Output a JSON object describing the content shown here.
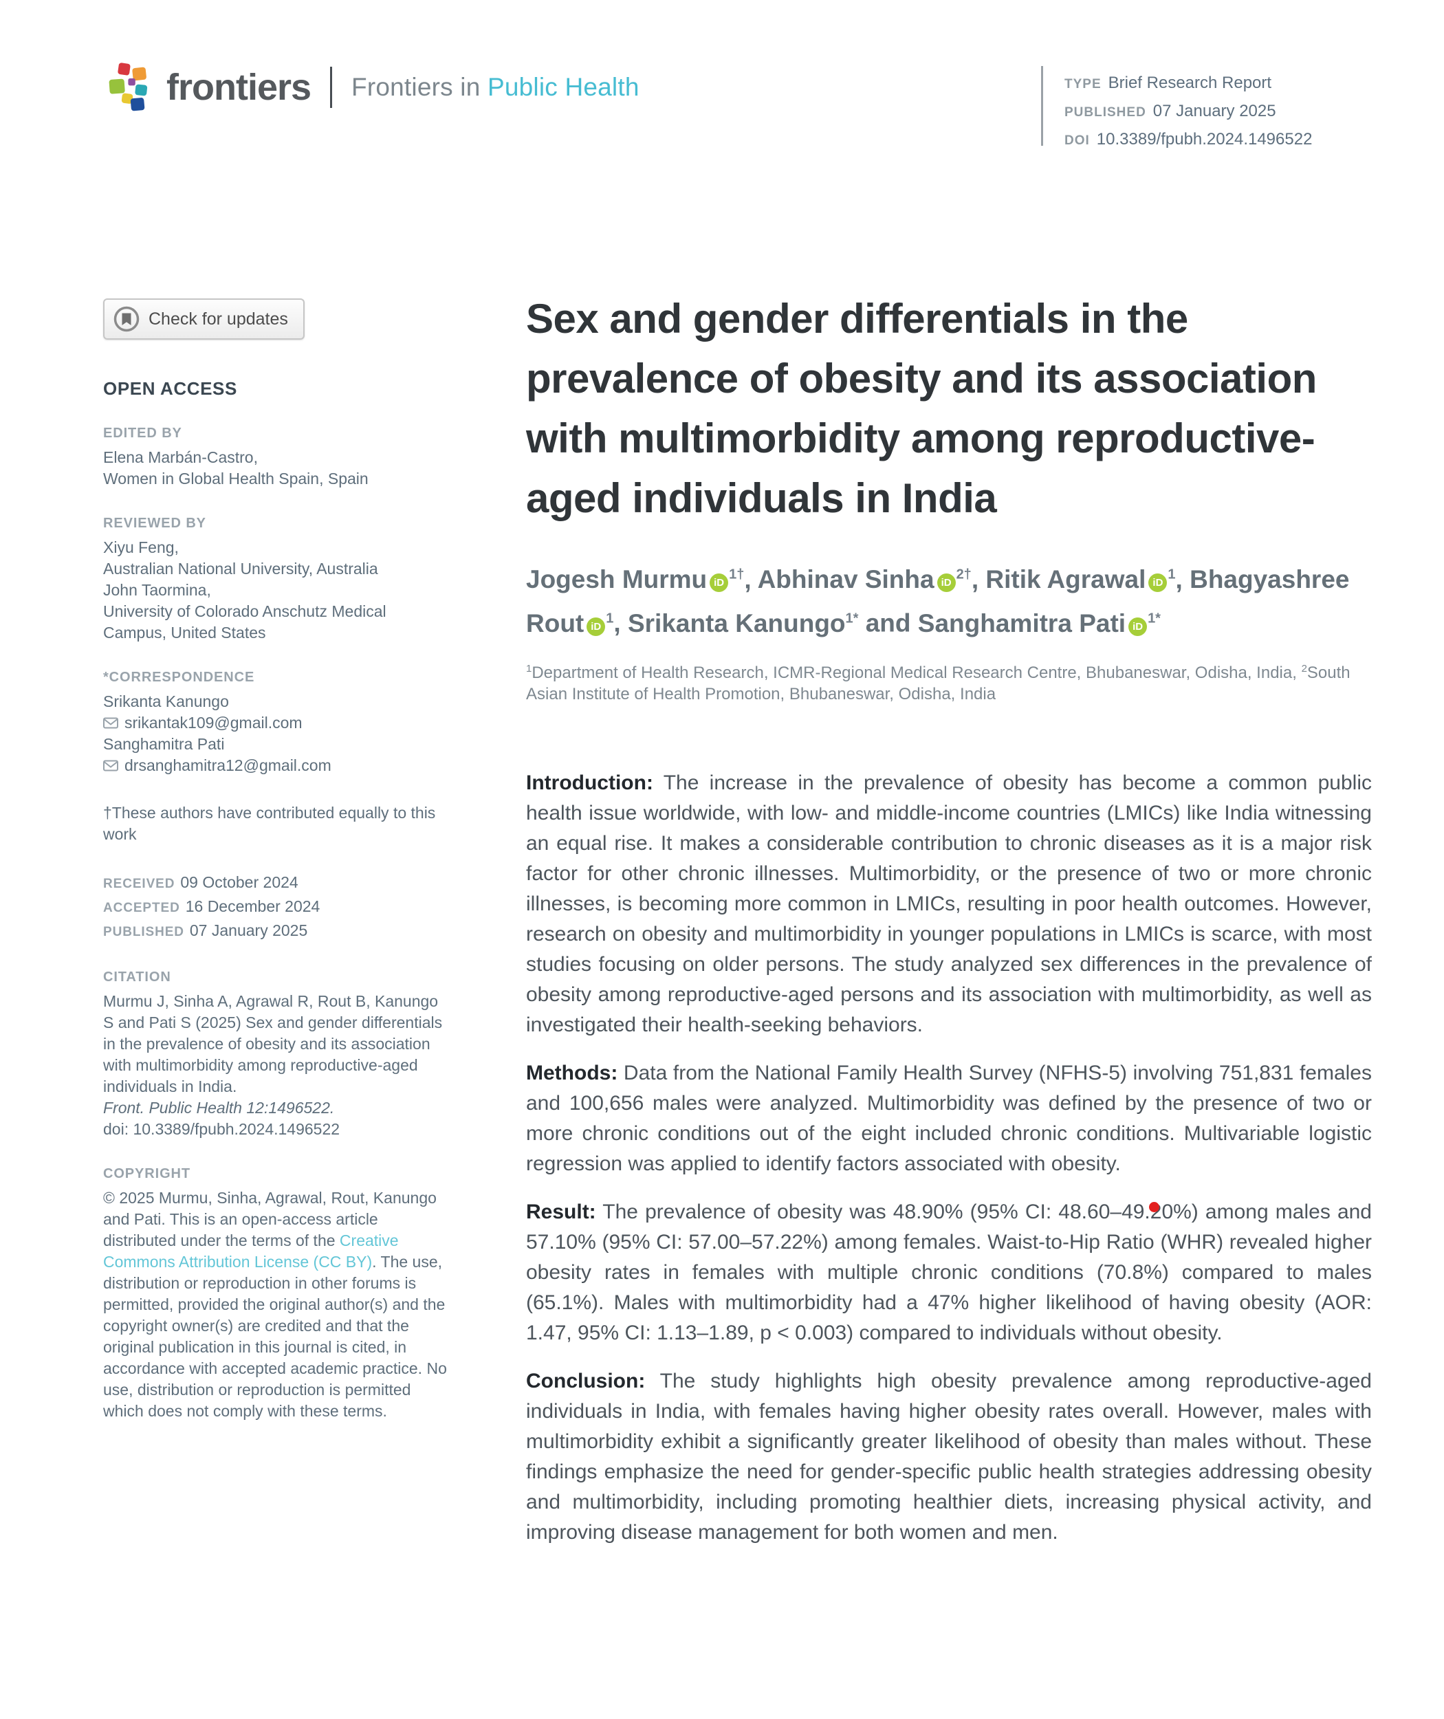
{
  "header": {
    "brand": "frontiers",
    "journal_prefix": "Frontiers in",
    "journal_name": "Public Health",
    "meta": [
      {
        "label": "TYPE",
        "value": "Brief Research Report"
      },
      {
        "label": "PUBLISHED",
        "value": "07 January 2025"
      },
      {
        "label": "DOI",
        "value": "10.3389/fpubh.2024.1496522"
      }
    ]
  },
  "sidebar": {
    "check_updates_label": "Check for updates",
    "open_access": "OPEN ACCESS",
    "edited_by": {
      "label": "EDITED BY",
      "lines": [
        "Elena Marbán-Castro,",
        "Women in Global Health Spain, Spain"
      ]
    },
    "reviewed_by": {
      "label": "REVIEWED BY",
      "lines": [
        "Xiyu Feng,",
        "Australian National University, Australia",
        "John Taormina,",
        "University of Colorado Anschutz Medical Campus, United States"
      ]
    },
    "correspondence": {
      "label": "*CORRESPONDENCE",
      "entries": [
        {
          "name": "Srikanta Kanungo",
          "email": "srikantak109@gmail.com"
        },
        {
          "name": "Sanghamitra Pati",
          "email": "drsanghamitra12@gmail.com"
        }
      ]
    },
    "contributed_note": "†These authors have contributed equally to this work",
    "dates": [
      {
        "label": "RECEIVED",
        "value": "09 October 2024"
      },
      {
        "label": "ACCEPTED",
        "value": "16 December 2024"
      },
      {
        "label": "PUBLISHED",
        "value": "07 January 2025"
      }
    ],
    "citation": {
      "label": "CITATION",
      "text": "Murmu J, Sinha A, Agrawal R, Rout B, Kanungo S and Pati S (2025) Sex and gender differentials in the prevalence of obesity and its association with multimorbidity among reproductive-aged individuals in India.",
      "journal_ref": "Front. Public Health 12:1496522.",
      "doi_line": "doi: 10.3389/fpubh.2024.1496522"
    },
    "copyright": {
      "label": "COPYRIGHT",
      "pre": "© 2025 Murmu, Sinha, Agrawal, Rout, Kanungo and Pati. This is an open-access article distributed under the terms of the ",
      "link": "Creative Commons Attribution License (CC BY)",
      "post": ". The use, distribution or reproduction in other forums is permitted, provided the original author(s) and the copyright owner(s) are credited and that the original publication in this journal is cited, in accordance with accepted academic practice. No use, distribution or reproduction is permitted which does not comply with these terms."
    }
  },
  "article": {
    "title": "Sex and gender differentials in the prevalence of obesity and its association with multimorbidity among reproductive-aged individuals in India",
    "authors": [
      {
        "name": "Jogesh Murmu",
        "orcid": true,
        "sup": "1†"
      },
      {
        "name": "Abhinav Sinha",
        "orcid": true,
        "sup": "2†"
      },
      {
        "name": "Ritik Agrawal",
        "orcid": true,
        "sup": "1"
      },
      {
        "name": "Bhagyashree Rout",
        "orcid": true,
        "sup": "1"
      },
      {
        "name": "Srikanta Kanungo",
        "orcid": false,
        "sup": "1*"
      },
      {
        "name": "Sanghamitra Pati",
        "orcid": true,
        "sup": "1*"
      }
    ],
    "affiliations": [
      {
        "sup": "1",
        "text": "Department of Health Research, ICMR-Regional Medical Research Centre, Bhubaneswar, Odisha, India, "
      },
      {
        "sup": "2",
        "text": "South Asian Institute of Health Promotion, Bhubaneswar, Odisha, India"
      }
    ],
    "sections": [
      {
        "label": "Introduction:",
        "text": "The increase in the prevalence of obesity has become a common public health issue worldwide, with low- and middle-income countries (LMICs) like India witnessing an equal rise. It makes a considerable contribution to chronic diseases as it is a major risk factor for other chronic illnesses. Multimorbidity, or the presence of two or more chronic illnesses, is becoming more common in LMICs, resulting in poor health outcomes. However, research on obesity and multimorbidity in younger populations in LMICs is scarce, with most studies focusing on older persons. The study analyzed sex differences in the prevalence of obesity among reproductive-aged persons and its association with multimorbidity, as well as investigated their health-seeking behaviors."
      },
      {
        "label": "Methods:",
        "text": "Data from the National Family Health Survey (NFHS-5) involving 751,831 females and 100,656 males were analyzed. Multimorbidity was defined by the presence of two or more chronic conditions out of the eight included chronic conditions. Multivariable logistic regression was applied to identify factors associated with obesity."
      },
      {
        "label": "Result:",
        "text": "The prevalence of obesity was 48.90% (95% CI: 48.60–49.20%) among males and 57.10% (95% CI: 57.00–57.22%) among females. Waist-to-Hip Ratio (WHR) revealed higher obesity rates in females with multiple chronic conditions (70.8%) compared to males (65.1%). Males with multimorbidity had a 47% higher likelihood of having obesity (AOR: 1.47, 95% CI: 1.13–1.89, p < 0.003) compared to individuals without obesity."
      },
      {
        "label": "Conclusion:",
        "text": "The study highlights high obesity prevalence among reproductive-aged individuals in India, with females having higher obesity rates overall. However, males with multimorbidity exhibit a significantly greater likelihood of obesity than males without. These findings emphasize the need for gender-specific public health strategies addressing obesity and multimorbidity, including promoting healthier diets, increasing physical activity, and improving disease management for both women and men."
      }
    ]
  },
  "colors": {
    "journal_teal": "#46bcd2",
    "link_teal": "#63c6d7",
    "orcid_green": "#a6ce39",
    "red_dot": "#e3201f"
  }
}
